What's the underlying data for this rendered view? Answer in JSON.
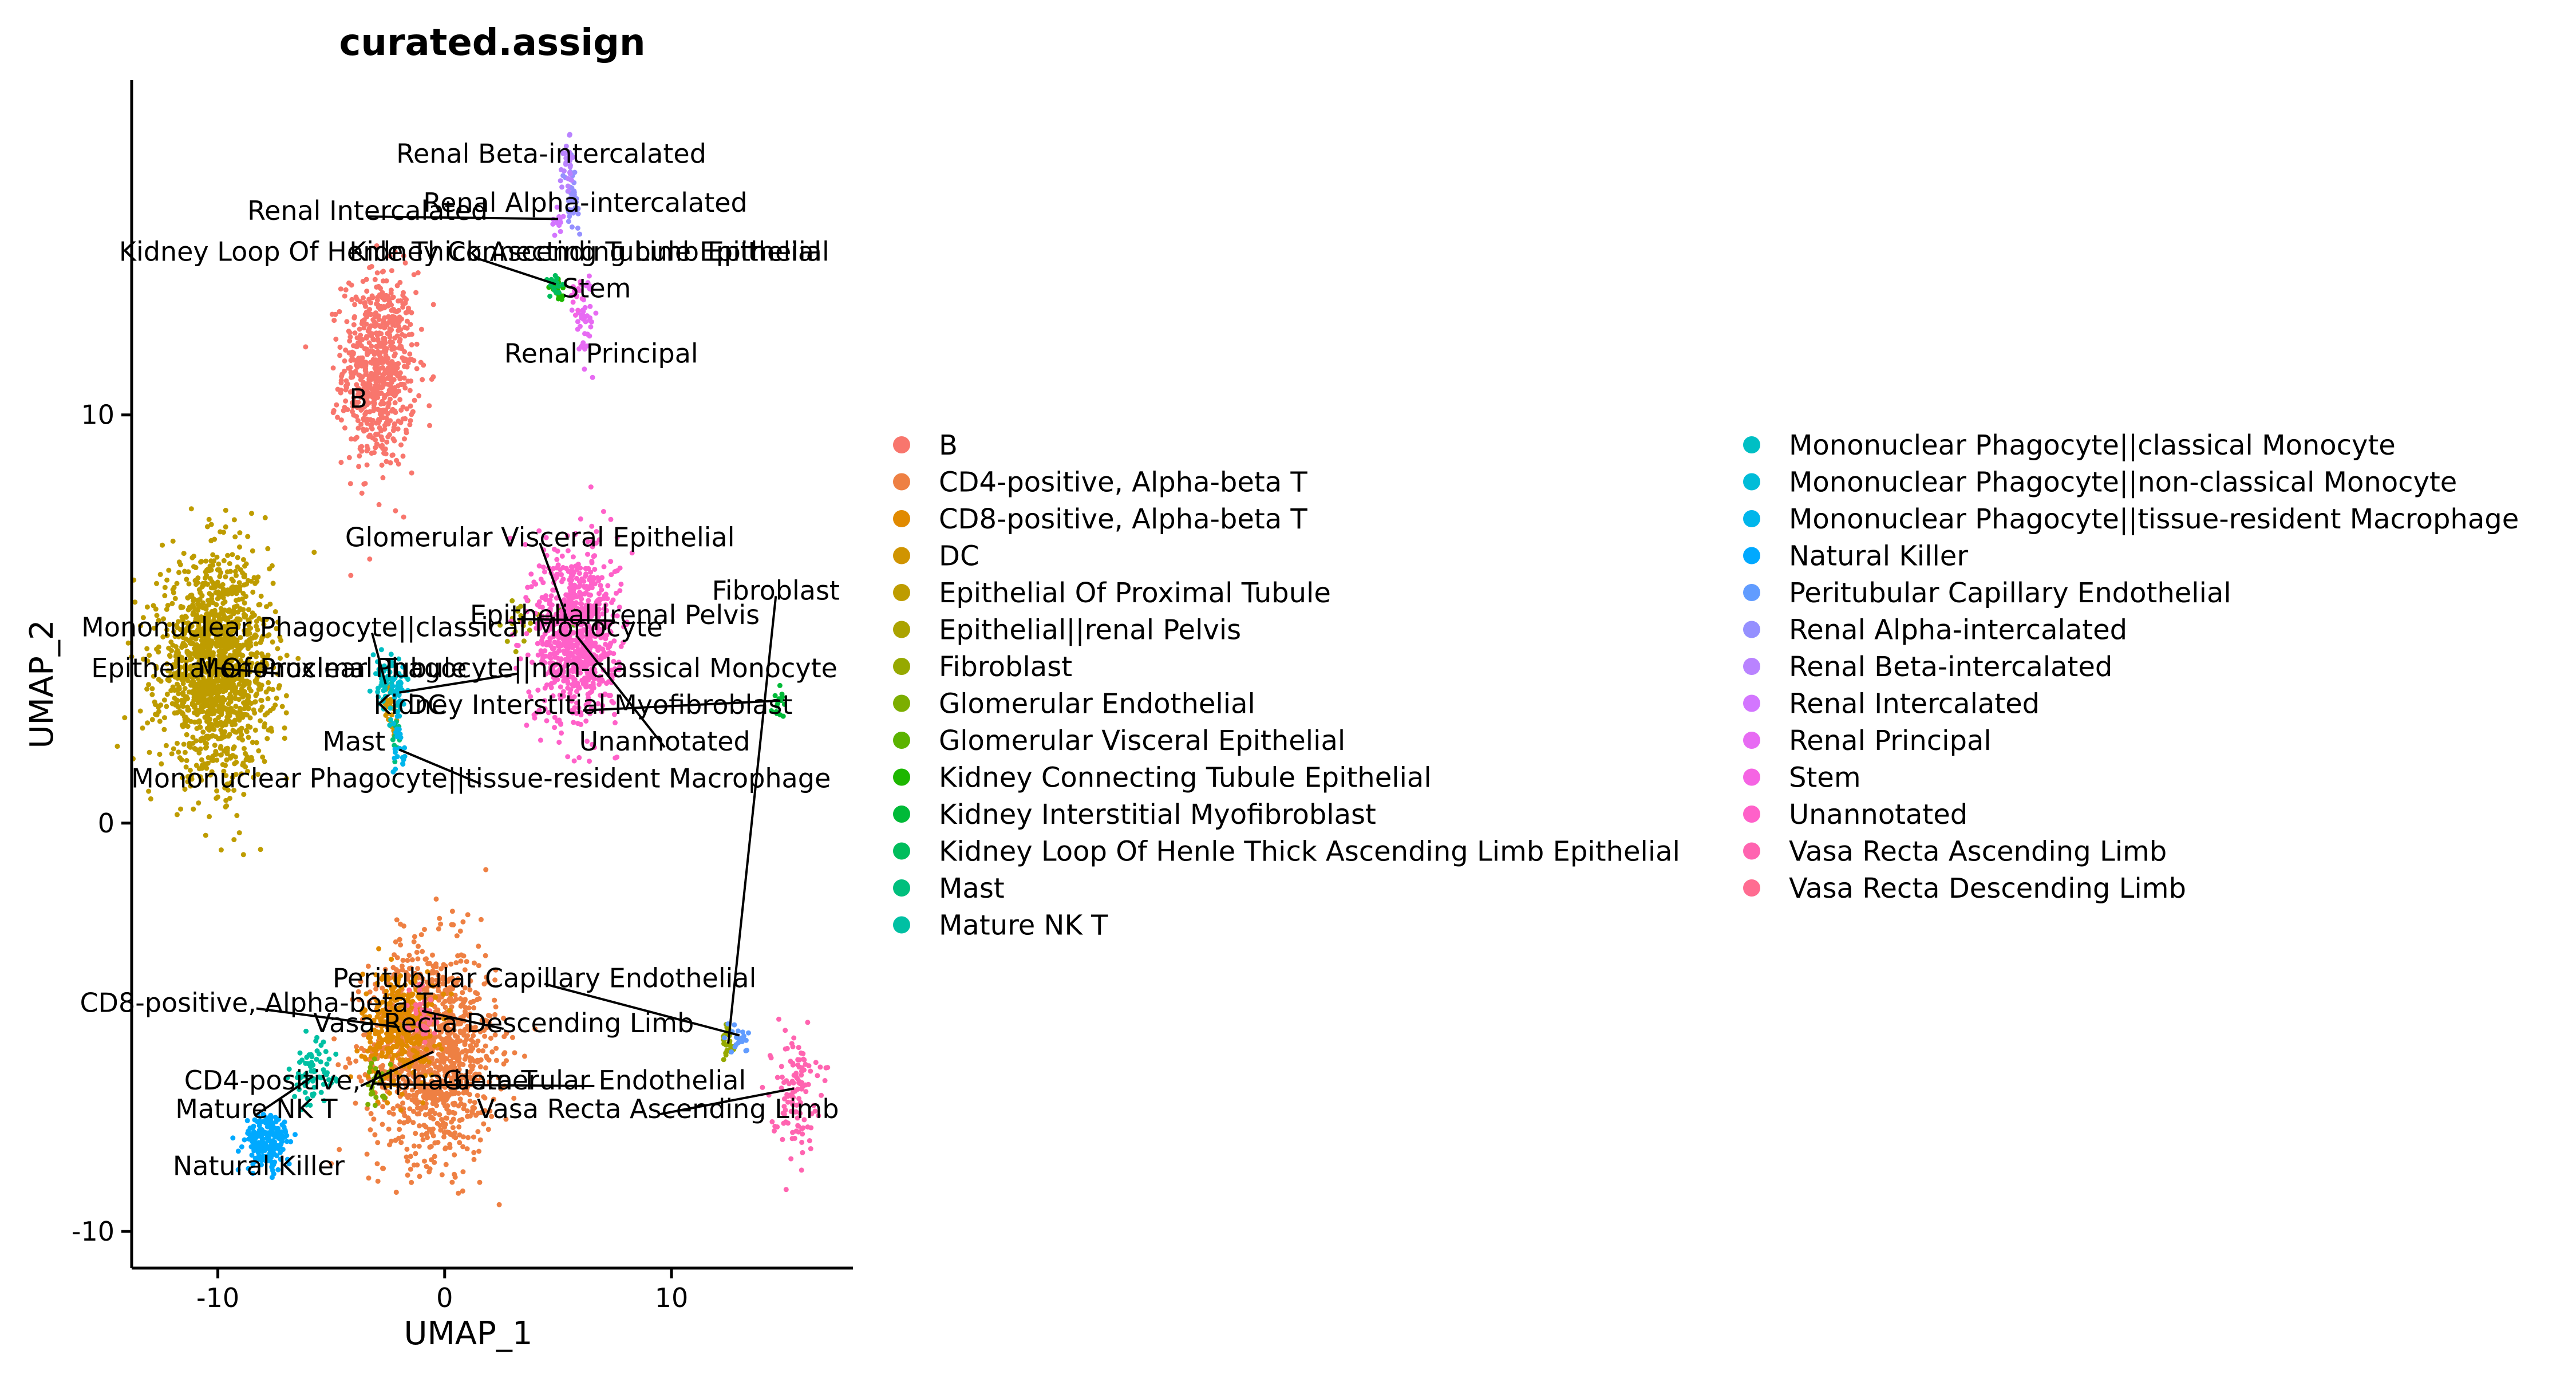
{
  "chart_data": {
    "type": "scatter",
    "title": "curated.assign",
    "xlabel": "UMAP_1",
    "ylabel": "UMAP_2",
    "xlim": [
      -13.8,
      18.0
    ],
    "ylim": [
      -10.9,
      18.2
    ],
    "xticks": [
      -10,
      0,
      10
    ],
    "yticks": [
      -10,
      0,
      10
    ],
    "grid": false,
    "legend_position": "right, two columns",
    "legend": [
      {
        "name": "B",
        "color": "#F8766D"
      },
      {
        "name": "CD4-positive, Alpha-beta T",
        "color": "#EE8043"
      },
      {
        "name": "CD8-positive, Alpha-beta T",
        "color": "#E18A00"
      },
      {
        "name": "DC",
        "color": "#D09400"
      },
      {
        "name": "Epithelial Of Proximal Tubule",
        "color": "#BE9C00"
      },
      {
        "name": "Epithelial||renal Pelvis",
        "color": "#ABA300"
      },
      {
        "name": "Fibroblast",
        "color": "#96A900"
      },
      {
        "name": "Glomerular Endothelial",
        "color": "#7CAE00"
      },
      {
        "name": "Glomerular Visceral Epithelial",
        "color": "#5BB300"
      },
      {
        "name": "Kidney Connecting Tubule Epithelial",
        "color": "#1DB700"
      },
      {
        "name": "Kidney Interstitial Myofibroblast",
        "color": "#00BA38"
      },
      {
        "name": "Kidney Loop Of Henle Thick Ascending Limb Epithelial",
        "color": "#00BD5C"
      },
      {
        "name": "Mast",
        "color": "#00BF7D"
      },
      {
        "name": "Mature NK T",
        "color": "#00C0A3"
      },
      {
        "name": "Mononuclear Phagocyte||classical Monocyte",
        "color": "#00BFC4"
      },
      {
        "name": "Mononuclear Phagocyte||non-classical Monocyte",
        "color": "#00BCD8"
      },
      {
        "name": "Mononuclear Phagocyte||tissue-resident Macrophage",
        "color": "#00B6EB"
      },
      {
        "name": "Natural Killer",
        "color": "#00A9FF"
      },
      {
        "name": "Peritubular Capillary Endothelial",
        "color": "#619CFF"
      },
      {
        "name": "Renal Alpha-intercalated",
        "color": "#9590FF"
      },
      {
        "name": "Renal Beta-intercalated",
        "color": "#B983FF"
      },
      {
        "name": "Renal Intercalated",
        "color": "#D376FF"
      },
      {
        "name": "Renal Principal",
        "color": "#E76BF3"
      },
      {
        "name": "Stem",
        "color": "#F564E3"
      },
      {
        "name": "Unannotated",
        "color": "#FF61C9"
      },
      {
        "name": "Vasa Recta Ascending Limb",
        "color": "#FF64B0"
      },
      {
        "name": "Vasa Recta Descending Limb",
        "color": "#FF6C91"
      }
    ],
    "clusters": [
      {
        "name": "B",
        "color": "#F8766D",
        "cx": -2.9,
        "cy": 11.1,
        "sx": 0.8,
        "sy": 1.2,
        "n": 700,
        "label": {
          "text": "B",
          "x": -3.8,
          "y": 10.4
        }
      },
      {
        "name": "CD4-positive, Alpha-beta T",
        "color": "#EE8043",
        "cx": -0.5,
        "cy": -5.6,
        "sx": 1.4,
        "sy": 1.3,
        "n": 1100,
        "label": {
          "text": "CD4-positive, Alpha-beta T",
          "x": -3.7,
          "y": -6.3
        }
      },
      {
        "name": "CD8-positive, Alpha-beta T",
        "color": "#E18A00",
        "cx": -2.0,
        "cy": -5.0,
        "sx": 0.8,
        "sy": 0.7,
        "n": 350,
        "label": {
          "text": "CD8-positive, Alpha-beta T",
          "x": -8.3,
          "y": -4.4
        }
      },
      {
        "name": "DC",
        "color": "#D09400",
        "cx": -2.4,
        "cy": 2.8,
        "sx": 0.15,
        "sy": 0.25,
        "n": 25,
        "label": {
          "text": "DC",
          "x": -0.8,
          "y": 2.9
        }
      },
      {
        "name": "Epithelial Of Proximal Tubule",
        "color": "#BE9C00",
        "cx": -10.1,
        "cy": 3.8,
        "sx": 1.2,
        "sy": 1.3,
        "n": 1500,
        "label": {
          "text": "Epithelial Of Proximal Tubule",
          "x": -7.3,
          "y": 3.8
        }
      },
      {
        "name": "Epithelial||renal Pelvis",
        "color": "#ABA300",
        "cx": 3.2,
        "cy": 5.0,
        "sx": 0.3,
        "sy": 0.3,
        "n": 20,
        "label": {
          "text": "Epithelial||renal Pelvis",
          "x": 7.5,
          "y": 5.1
        }
      },
      {
        "name": "Fibroblast",
        "color": "#96A900",
        "cx": 12.5,
        "cy": -5.4,
        "sx": 0.12,
        "sy": 0.25,
        "n": 30,
        "label": {
          "text": "Fibroblast",
          "x": 14.6,
          "y": 5.7
        }
      },
      {
        "name": "Glomerular Endothelial",
        "color": "#7CAE00",
        "cx": -3.0,
        "cy": -6.4,
        "sx": 0.3,
        "sy": 0.3,
        "n": 25,
        "label": {
          "text": "Glomerular Endothelial",
          "x": 6.6,
          "y": -6.3
        }
      },
      {
        "name": "Glomerular Visceral Epithelial",
        "color": "#5BB300",
        "cx": 5.4,
        "cy": 5.0,
        "sx": 0.2,
        "sy": 0.2,
        "n": 15,
        "label": {
          "text": "Glomerular Visceral Epithelial",
          "x": 4.2,
          "y": 7.0
        }
      },
      {
        "name": "Kidney Connecting Tubule Epithelial",
        "color": "#1DB700",
        "cx": 5.0,
        "cy": 13.0,
        "sx": 0.2,
        "sy": 0.15,
        "n": 15,
        "label": {
          "text": "Kidney Connecting Tubule Epithelial",
          "x": 6.2,
          "y": 14.0
        }
      },
      {
        "name": "Kidney Interstitial Myofibroblast",
        "color": "#00BA38",
        "cx": 14.8,
        "cy": 3.0,
        "sx": 0.15,
        "sy": 0.2,
        "n": 15,
        "label": {
          "text": "Kidney Interstitial Myofibroblast",
          "x": 6.1,
          "y": 2.9
        }
      },
      {
        "name": "Kidney Loop Of Henle Thick Ascending Limb Epithelial",
        "color": "#00BD5C",
        "cx": 4.9,
        "cy": 13.2,
        "sx": 0.2,
        "sy": 0.15,
        "n": 15,
        "label": {
          "text": "Kidney Loop Of Henle Thick Ascending Limb Epithelial",
          "x": 1.3,
          "y": 14.0
        }
      },
      {
        "name": "Mast",
        "color": "#00BF7D",
        "cx": -2.2,
        "cy": 2.2,
        "sx": 0.1,
        "sy": 0.3,
        "n": 15,
        "label": {
          "text": "Mast",
          "x": -4.0,
          "y": 2.0
        }
      },
      {
        "name": "Mature NK T",
        "color": "#00C0A3",
        "cx": -5.8,
        "cy": -6.2,
        "sx": 0.5,
        "sy": 0.4,
        "n": 70,
        "label": {
          "text": "Mature NK T",
          "x": -8.3,
          "y": -7.0
        }
      },
      {
        "name": "Mononuclear Phagocyte||classical Monocyte",
        "color": "#00BFC4",
        "cx": -2.6,
        "cy": 3.4,
        "sx": 0.3,
        "sy": 0.35,
        "n": 60,
        "label": {
          "text": "Mononuclear Phagocyte||classical Monocyte",
          "x": -3.2,
          "y": 4.8
        }
      },
      {
        "name": "Mononuclear Phagocyte||non-classical Monocyte",
        "color": "#00BCD8",
        "cx": -2.0,
        "cy": 3.2,
        "sx": 0.2,
        "sy": 0.3,
        "n": 30,
        "label": {
          "text": "Mononuclear Phagocyte||non-classical Monocyte",
          "x": 3.2,
          "y": 3.8
        }
      },
      {
        "name": "Mononuclear Phagocyte||tissue-resident Macrophage",
        "color": "#00B6EB",
        "cx": -2.0,
        "cy": 1.8,
        "sx": 0.15,
        "sy": 0.3,
        "n": 20,
        "label": {
          "text": "Mononuclear Phagocyte||tissue-resident Macrophage",
          "x": 1.6,
          "y": 1.1
        }
      },
      {
        "name": "Natural Killer",
        "color": "#00A9FF",
        "cx": -7.8,
        "cy": -7.8,
        "sx": 0.5,
        "sy": 0.35,
        "n": 200,
        "label": {
          "text": "Natural Killer",
          "x": -8.2,
          "y": -8.4
        }
      },
      {
        "name": "Peritubular Capillary Endothelial",
        "color": "#619CFF",
        "cx": 13.0,
        "cy": -5.2,
        "sx": 0.25,
        "sy": 0.2,
        "n": 20,
        "label": {
          "text": "Peritubular Capillary Endothelial",
          "x": 4.4,
          "y": -3.8
        }
      },
      {
        "name": "Renal Alpha-intercalated",
        "color": "#9590FF",
        "cx": 5.6,
        "cy": 15.3,
        "sx": 0.15,
        "sy": 0.35,
        "n": 40,
        "label": {
          "text": "Renal Alpha-intercalated",
          "x": 6.2,
          "y": 15.2
        }
      },
      {
        "name": "Renal Beta-intercalated",
        "color": "#B983FF",
        "cx": 5.4,
        "cy": 16.1,
        "sx": 0.15,
        "sy": 0.3,
        "n": 30,
        "label": {
          "text": "Renal Beta-intercalated",
          "x": 4.7,
          "y": 16.4
        }
      },
      {
        "name": "Renal Intercalated",
        "color": "#D376FF",
        "cx": 5.0,
        "cy": 14.8,
        "sx": 0.15,
        "sy": 0.2,
        "n": 15,
        "label": {
          "text": "Renal Intercalated",
          "x": -3.4,
          "y": 15.0
        }
      },
      {
        "name": "Renal Principal",
        "color": "#E76BF3",
        "cx": 6.2,
        "cy": 12.4,
        "sx": 0.2,
        "sy": 0.5,
        "n": 40,
        "label": {
          "text": "Renal Principal",
          "x": 6.9,
          "y": 11.5
        }
      },
      {
        "name": "Stem",
        "color": "#F564E3",
        "cx": 5.9,
        "cy": 13.0,
        "sx": 0.15,
        "sy": 0.2,
        "n": 15,
        "label": {
          "text": "Stem",
          "x": 6.7,
          "y": 13.1
        }
      },
      {
        "name": "Unannotated",
        "color": "#FF61C9",
        "cx": 5.8,
        "cy": 4.6,
        "sx": 0.9,
        "sy": 1.1,
        "n": 800,
        "label": {
          "text": "Unannotated",
          "x": 9.7,
          "y": 2.0
        }
      },
      {
        "name": "Vasa Recta Ascending Limb",
        "color": "#FF64B0",
        "cx": 15.4,
        "cy": -6.5,
        "sx": 0.5,
        "sy": 0.7,
        "n": 120,
        "label": {
          "text": "Vasa Recta Ascending Limb",
          "x": 9.4,
          "y": -7.0
        }
      },
      {
        "name": "Vasa Recta Descending Limb",
        "color": "#FF6C91",
        "cx": -1.0,
        "cy": -4.6,
        "sx": 0.35,
        "sy": 0.35,
        "n": 40,
        "label": {
          "text": "Vasa Recta Descending Limb",
          "x": 2.6,
          "y": -4.9
        }
      }
    ]
  }
}
